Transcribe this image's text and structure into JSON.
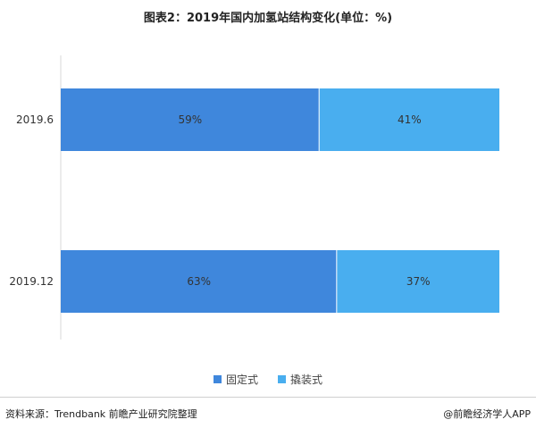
{
  "chart_data": {
    "type": "bar",
    "orientation": "horizontal",
    "stacked": true,
    "title": "图表2：2019年国内加氢站结构变化(单位：%)",
    "categories": [
      "2019.6",
      "2019.12"
    ],
    "series": [
      {
        "name": "固定式",
        "color": "#3f87dc",
        "values": [
          59,
          63
        ],
        "labels": [
          "59%",
          "63%"
        ]
      },
      {
        "name": "撬装式",
        "color": "#49aeef",
        "values": [
          41,
          37
        ],
        "labels": [
          "41%",
          "37%"
        ]
      }
    ],
    "xlim": [
      0,
      100
    ],
    "grid": false,
    "legend_position": "bottom"
  },
  "footer": {
    "source": "资料来源：Trendbank 前瞻产业研究院整理",
    "brand": "@前瞻经济学人APP"
  }
}
